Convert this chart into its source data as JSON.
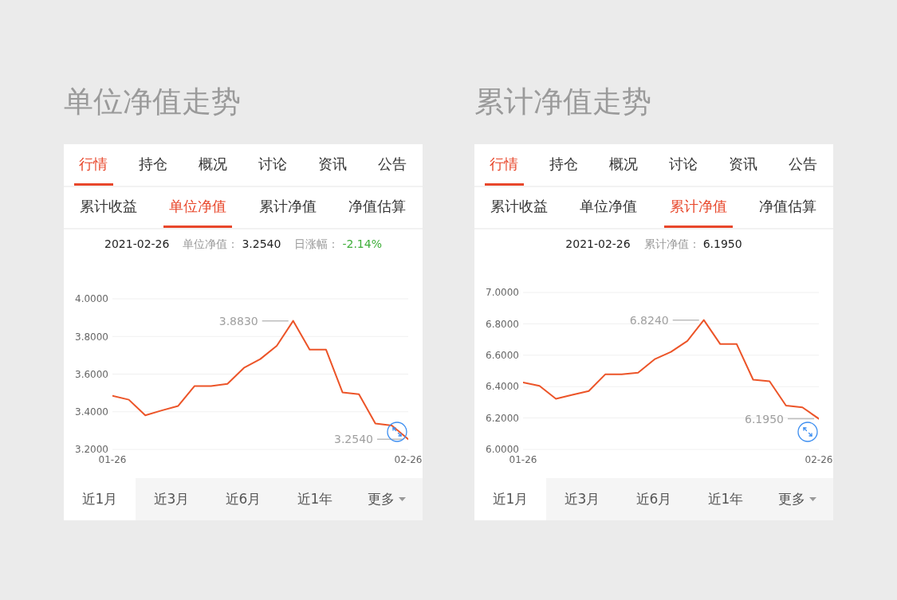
{
  "chart_data": [
    {
      "type": "line",
      "title": "单位净值走势",
      "categories": [
        "01-26",
        null,
        null,
        null,
        null,
        null,
        null,
        null,
        null,
        null,
        null,
        null,
        null,
        null,
        null,
        null,
        null,
        null,
        "02-26"
      ],
      "series": [
        {
          "color": "#ec5428",
          "values": [
            3.485,
            3.464,
            3.381,
            3.407,
            3.431,
            3.537,
            3.537,
            3.548,
            3.633,
            3.68,
            3.75,
            3.883,
            3.73,
            3.73,
            3.503,
            3.493,
            3.338,
            3.327,
            3.254
          ],
          "value_labels": [
            null,
            null,
            null,
            null,
            null,
            null,
            null,
            null,
            null,
            null,
            null,
            "3.8830",
            null,
            null,
            null,
            null,
            null,
            null,
            "3.2540"
          ]
        }
      ],
      "ylim": [
        3.2,
        4.0
      ],
      "yticks": [
        {
          "value": 3.2,
          "label": "3.2000"
        },
        {
          "value": 3.4,
          "label": "3.4000"
        },
        {
          "value": 3.6,
          "label": "3.6000"
        },
        {
          "value": 3.8,
          "label": "3.8000"
        },
        {
          "value": 4.0,
          "label": "4.0000"
        }
      ],
      "grid": "y",
      "annotations": [
        "行情",
        "持仓",
        "概况",
        "讨论",
        "资讯",
        "公告",
        "累计收益",
        "单位净值",
        "累计净值",
        "净值估算",
        "近1月",
        "近3月",
        "近6月",
        "近1年",
        "更多",
        "2021-02-26",
        "单位净值：",
        "3.2540",
        "日涨幅：",
        "-2.14%"
      ]
    },
    {
      "type": "line",
      "title": "累计净值走势",
      "categories": [
        "01-26",
        null,
        null,
        null,
        null,
        null,
        null,
        null,
        null,
        null,
        null,
        null,
        null,
        null,
        null,
        null,
        null,
        null,
        "02-26"
      ],
      "series": [
        {
          "color": "#ec5428",
          "values": [
            6.426,
            6.405,
            6.322,
            6.348,
            6.372,
            6.478,
            6.478,
            6.489,
            6.574,
            6.621,
            6.691,
            6.824,
            6.671,
            6.671,
            6.444,
            6.434,
            6.279,
            6.268,
            6.195
          ],
          "value_labels": [
            null,
            null,
            null,
            null,
            null,
            null,
            null,
            null,
            null,
            null,
            null,
            "6.8240",
            null,
            null,
            null,
            null,
            null,
            null,
            "6.1950"
          ]
        }
      ],
      "ylim": [
        6.0,
        7.0
      ],
      "yticks": [
        {
          "value": 6.0,
          "label": "6.0000"
        },
        {
          "value": 6.2,
          "label": "6.2000"
        },
        {
          "value": 6.4,
          "label": "6.4000"
        },
        {
          "value": 6.6,
          "label": "6.6000"
        },
        {
          "value": 6.8,
          "label": "6.8000"
        },
        {
          "value": 7.0,
          "label": "7.0000"
        }
      ],
      "grid": "y",
      "annotations": [
        "行情",
        "持仓",
        "概况",
        "讨论",
        "资讯",
        "公告",
        "累计收益",
        "单位净值",
        "累计净值",
        "净值估算",
        "近1月",
        "近3月",
        "近6月",
        "近1年",
        "更多",
        "2021-02-26",
        "累计净值：",
        "6.1950"
      ]
    }
  ]
}
